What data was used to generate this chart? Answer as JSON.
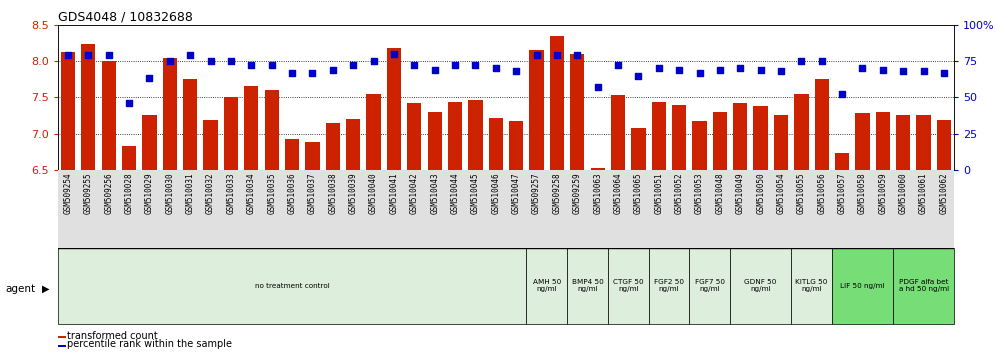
{
  "title": "GDS4048 / 10832688",
  "gsm_labels": [
    "GSM509254",
    "GSM509255",
    "GSM509256",
    "GSM510028",
    "GSM510029",
    "GSM510030",
    "GSM510031",
    "GSM510032",
    "GSM510033",
    "GSM510034",
    "GSM510035",
    "GSM510036",
    "GSM510037",
    "GSM510038",
    "GSM510039",
    "GSM510040",
    "GSM510041",
    "GSM510042",
    "GSM510043",
    "GSM510044",
    "GSM510045",
    "GSM510046",
    "GSM510047",
    "GSM509257",
    "GSM509258",
    "GSM509259",
    "GSM510063",
    "GSM510064",
    "GSM510065",
    "GSM510051",
    "GSM510052",
    "GSM510053",
    "GSM510048",
    "GSM510049",
    "GSM510050",
    "GSM510054",
    "GSM510055",
    "GSM510056",
    "GSM510057",
    "GSM510058",
    "GSM510059",
    "GSM510060",
    "GSM510061",
    "GSM510062"
  ],
  "bar_values": [
    8.13,
    8.23,
    8.0,
    6.83,
    7.26,
    8.04,
    7.75,
    7.19,
    7.5,
    7.65,
    7.6,
    6.92,
    6.88,
    7.15,
    7.2,
    7.55,
    8.18,
    7.42,
    7.3,
    7.44,
    7.47,
    7.22,
    7.17,
    8.15,
    8.35,
    8.1,
    6.53,
    7.53,
    7.08,
    7.43,
    7.39,
    7.18,
    7.3,
    7.42,
    7.38,
    7.26,
    7.55,
    7.75,
    6.73,
    7.28,
    7.3,
    7.25,
    7.25,
    7.19
  ],
  "percentile_values": [
    79,
    79,
    79,
    46,
    63,
    75,
    79,
    75,
    75,
    72,
    72,
    67,
    67,
    69,
    72,
    75,
    80,
    72,
    69,
    72,
    72,
    70,
    68,
    79,
    79,
    79,
    57,
    72,
    65,
    70,
    69,
    67,
    69,
    70,
    69,
    68,
    75,
    75,
    52,
    70,
    69,
    68,
    68,
    67
  ],
  "ylim_left": [
    6.5,
    8.5
  ],
  "ylim_right": [
    0,
    100
  ],
  "bar_color": "#cc2200",
  "dot_color": "#0000cc",
  "agent_groups": [
    {
      "label": "no treatment control",
      "start": 0,
      "end": 23,
      "color": "#ddeedd",
      "bright": false
    },
    {
      "label": "AMH 50\nng/ml",
      "start": 23,
      "end": 25,
      "color": "#ddeedd",
      "bright": false
    },
    {
      "label": "BMP4 50\nng/ml",
      "start": 25,
      "end": 27,
      "color": "#ddeedd",
      "bright": false
    },
    {
      "label": "CTGF 50\nng/ml",
      "start": 27,
      "end": 29,
      "color": "#ddeedd",
      "bright": false
    },
    {
      "label": "FGF2 50\nng/ml",
      "start": 29,
      "end": 31,
      "color": "#ddeedd",
      "bright": false
    },
    {
      "label": "FGF7 50\nng/ml",
      "start": 31,
      "end": 33,
      "color": "#ddeedd",
      "bright": false
    },
    {
      "label": "GDNF 50\nng/ml",
      "start": 33,
      "end": 36,
      "color": "#ddeedd",
      "bright": false
    },
    {
      "label": "KITLG 50\nng/ml",
      "start": 36,
      "end": 38,
      "color": "#ddeedd",
      "bright": false
    },
    {
      "label": "LIF 50 ng/ml",
      "start": 38,
      "end": 41,
      "color": "#77dd77",
      "bright": true
    },
    {
      "label": "PDGF alfa bet\na hd 50 ng/ml",
      "start": 41,
      "end": 44,
      "color": "#77dd77",
      "bright": true
    }
  ]
}
